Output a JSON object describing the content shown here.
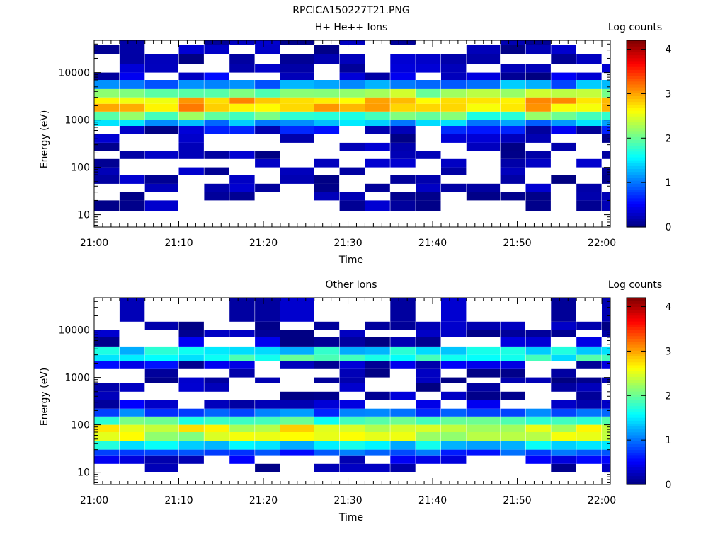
{
  "figure_title": "RPCICA150227T21.PNG",
  "panels": [
    {
      "title": "H+ He++ Ions",
      "colorbar_label": "Log counts",
      "xlabel": "Time",
      "ylabel": "Energy (eV)"
    },
    {
      "title": "Other Ions",
      "colorbar_label": "Log counts",
      "xlabel": "Time",
      "ylabel": "Energy (eV)"
    }
  ],
  "chart_data": [
    {
      "type": "heatmap",
      "title": "H+ He++ Ions",
      "xlabel": "Time",
      "ylabel": "Energy (eV)",
      "y_scale": "log",
      "x_tick_labels": [
        "21:00",
        "21:10",
        "21:20",
        "21:30",
        "21:40",
        "21:50",
        "22:00"
      ],
      "y_tick_labels": [
        "10",
        "100",
        "1000",
        "10000"
      ],
      "xlim": [
        "21:00",
        "22:01"
      ],
      "ylim": [
        5.5,
        48000
      ],
      "colorbar": {
        "label": "Log counts",
        "range": [
          0,
          4.2
        ],
        "tick_labels": [
          "0",
          "1",
          "2",
          "3",
          "4"
        ],
        "colormap": "jet"
      },
      "time_bins": [
        "21:00",
        "21:03",
        "21:06",
        "21:10",
        "21:13",
        "21:16",
        "21:19",
        "21:22",
        "21:26",
        "21:29",
        "21:32",
        "21:35",
        "21:38",
        "21:41",
        "21:44",
        "21:48",
        "21:51",
        "21:54",
        "21:57",
        "22:00"
      ],
      "energy_bins_eV": [
        12,
        20,
        30,
        45,
        70,
        100,
        150,
        220,
        330,
        500,
        750,
        1000,
        1500,
        2200,
        3000,
        4500,
        7000,
        10000,
        15000,
        25000,
        38000
      ],
      "log_counts_description": "Main band 300-3000 eV, peak log counts ~2.7-3.2 near 2000 eV; sparse low counts above 4000 eV and below 200 eV",
      "band_profile": {
        "center_eV": 1800,
        "peak_log_counts": 3.0
      }
    },
    {
      "type": "heatmap",
      "title": "Other Ions",
      "xlabel": "Time",
      "ylabel": "Energy (eV)",
      "y_scale": "log",
      "x_tick_labels": [
        "21:00",
        "21:10",
        "21:20",
        "21:30",
        "21:40",
        "21:50",
        "22:00"
      ],
      "y_tick_labels": [
        "10",
        "100",
        "1000",
        "10000"
      ],
      "xlim": [
        "21:00",
        "22:01"
      ],
      "ylim": [
        5.5,
        48000
      ],
      "colorbar": {
        "label": "Log counts",
        "range": [
          0,
          4.2
        ],
        "tick_labels": [
          "0",
          "1",
          "2",
          "3",
          "4"
        ],
        "colormap": "jet"
      },
      "time_bins": [
        "21:00",
        "21:03",
        "21:06",
        "21:10",
        "21:13",
        "21:16",
        "21:19",
        "21:22",
        "21:26",
        "21:29",
        "21:32",
        "21:35",
        "21:38",
        "21:41",
        "21:44",
        "21:48",
        "21:51",
        "21:54",
        "21:57",
        "22:00"
      ],
      "energy_bins_eV": [
        10,
        15,
        22,
        30,
        45,
        70,
        100,
        150,
        220,
        330,
        500,
        750,
        1000,
        1500,
        2200,
        3000,
        4500,
        7000,
        10000,
        15000
      ],
      "log_counts_description": "Main band 20-500 eV with log counts ~1.5-2.7; secondary band 1800-4000 eV with log counts ~1.5-2",
      "band_profile": {
        "center_eV": 60,
        "peak_log_counts": 2.6,
        "secondary_center_eV": 2500,
        "secondary_peak_log_counts": 1.9
      }
    }
  ]
}
